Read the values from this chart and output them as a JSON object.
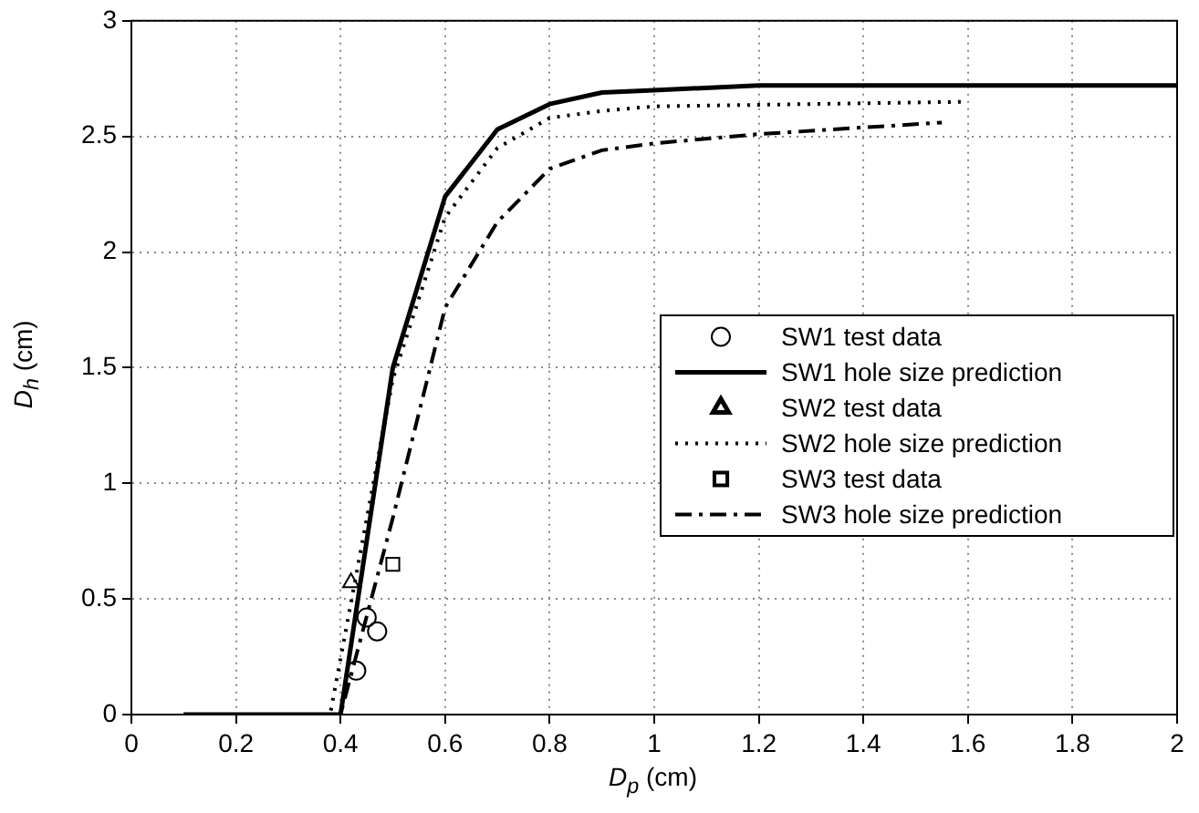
{
  "chart_data": {
    "type": "line",
    "xlabel": "D$_{p}$ (cm)",
    "ylabel": "D$_{h}$ (cm)",
    "xlim": [
      0,
      2
    ],
    "xticks": [
      0,
      0.2,
      0.4,
      0.6,
      0.8,
      1,
      1.2,
      1.4,
      1.6,
      1.8,
      2
    ],
    "ylim": [
      0,
      3
    ],
    "yticks": [
      0,
      0.5,
      1,
      1.5,
      2,
      2.5,
      3
    ],
    "grid": true,
    "legend": "right",
    "series": [
      {
        "name": "SW1 test data",
        "type": "scatter",
        "marker": "circle",
        "color": "#000000",
        "x": [
          0.43,
          0.45,
          0.47
        ],
        "values": [
          0.19,
          0.42,
          0.36
        ]
      },
      {
        "name": "SW1 hole size prediction",
        "type": "line",
        "line_style": "solid",
        "color": "#000000",
        "x": [
          0.1,
          0.4,
          0.5,
          0.6,
          0.7,
          0.8,
          0.9,
          1.0,
          1.2,
          2.0
        ],
        "values": [
          0,
          0,
          1.5,
          2.24,
          2.53,
          2.64,
          2.69,
          2.7,
          2.72,
          2.72
        ]
      },
      {
        "name": "SW2 test data",
        "type": "scatter",
        "marker": "triangle",
        "color": "#000000",
        "x": [
          0.42
        ],
        "values": [
          0.57
        ]
      },
      {
        "name": "SW2 hole size prediction",
        "type": "line",
        "line_style": "dotted",
        "color": "#000000",
        "x": [
          0.1,
          0.38,
          0.5,
          0.6,
          0.7,
          0.8,
          0.9,
          1.0,
          1.6
        ],
        "values": [
          0,
          0,
          1.45,
          2.15,
          2.45,
          2.58,
          2.61,
          2.63,
          2.65
        ]
      },
      {
        "name": "SW3 test data",
        "type": "scatter",
        "marker": "square",
        "color": "#000000",
        "x": [
          0.5
        ],
        "values": [
          0.65
        ]
      },
      {
        "name": "SW3 hole size prediction",
        "type": "line",
        "line_style": "dashed",
        "color": "#000000",
        "x": [
          0.1,
          0.4,
          0.5,
          0.6,
          0.7,
          0.8,
          0.9,
          1.0,
          1.2,
          1.55
        ],
        "values": [
          0,
          0,
          0.85,
          1.76,
          2.13,
          2.36,
          2.44,
          2.47,
          2.51,
          2.56
        ]
      }
    ]
  }
}
